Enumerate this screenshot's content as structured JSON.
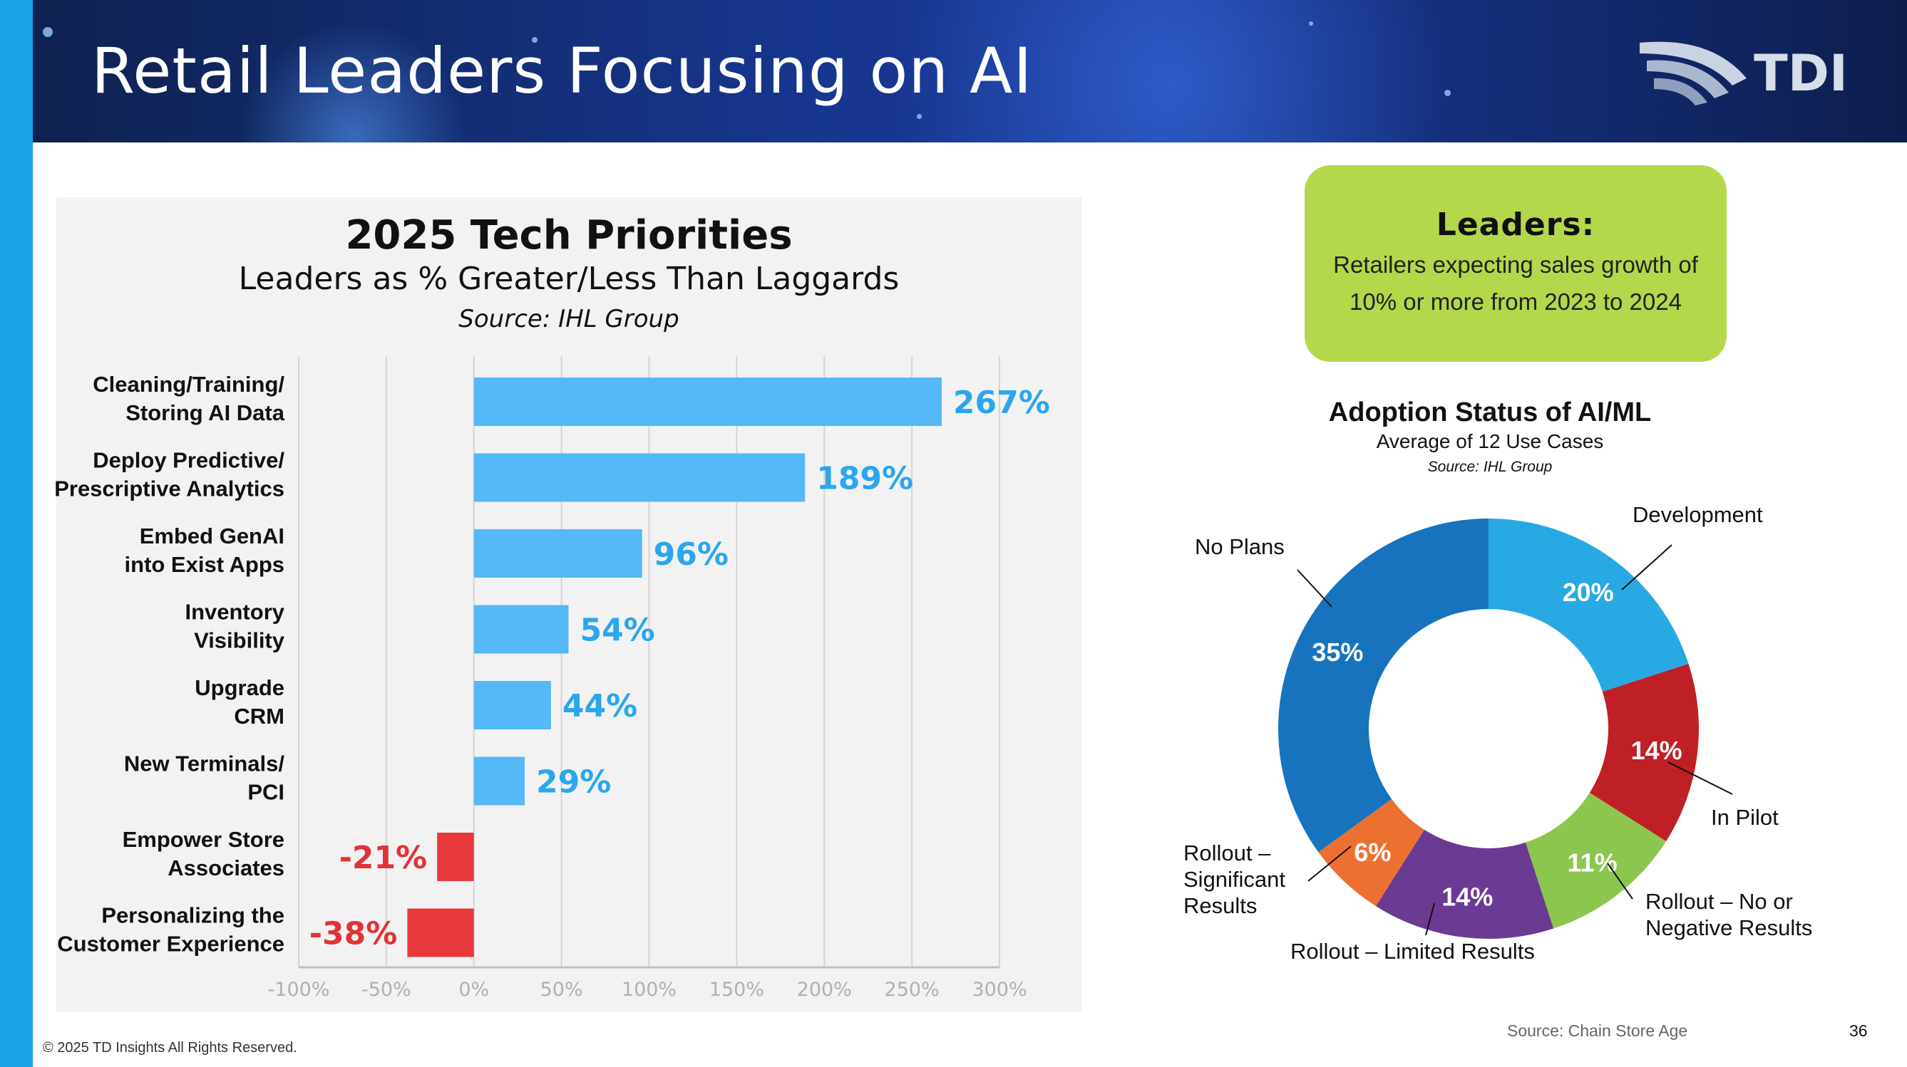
{
  "slide": {
    "title": "Retail Leaders Focusing on AI",
    "logo_text": "TDI",
    "footer_copyright": "© 2025 TD Insights All Rights Reserved.",
    "footer_source": "Source: Chain Store Age",
    "page_number": "36"
  },
  "leaders_box": {
    "title": "Leaders:",
    "text": "Retailers expecting sales growth of 10% or more from 2023 to 2024",
    "color": "#b3d84b"
  },
  "chart_data": [
    {
      "type": "bar",
      "orientation": "horizontal",
      "title": "2025 Tech Priorities",
      "subtitle": "Leaders as % Greater/Less Than Laggards",
      "source": "Source: IHL Group",
      "categories": [
        [
          "Cleaning/Training/",
          "Storing AI Data"
        ],
        [
          "Deploy Predictive/",
          "Prescriptive Analytics"
        ],
        [
          "Embed GenAI",
          "into Exist Apps"
        ],
        [
          "Inventory",
          "Visibility"
        ],
        [
          "Upgrade",
          "CRM"
        ],
        [
          "New Terminals/",
          "PCI"
        ],
        [
          "Empower Store",
          "Associates"
        ],
        [
          "Personalizing the",
          "Customer Experience"
        ]
      ],
      "values": [
        267,
        189,
        96,
        54,
        44,
        29,
        -21,
        -38
      ],
      "value_labels": [
        "267%",
        "189%",
        "96%",
        "54%",
        "44%",
        "29%",
        "-21%",
        "-38%"
      ],
      "xlim": [
        -100,
        300
      ],
      "x_ticks": [
        -100,
        -50,
        0,
        50,
        100,
        150,
        200,
        250,
        300
      ],
      "x_tick_labels": [
        "-100%",
        "-50%",
        "0%",
        "50%",
        "100%",
        "150%",
        "200%",
        "250%",
        "300%"
      ],
      "grid": true,
      "colors": {
        "positive": "#55b8f7",
        "negative": "#e8393c",
        "positive_label": "#2aa6ef",
        "negative_label": "#e03337"
      }
    },
    {
      "type": "pie",
      "style": "donut",
      "title": "Adoption Status of AI/ML",
      "subtitle": "Average of 12 Use Cases",
      "source": "Source: IHL Group",
      "slices": [
        {
          "label": "Development",
          "value": 20,
          "value_label": "20%",
          "color": "#29a9e3"
        },
        {
          "label": "In Pilot",
          "value": 14,
          "value_label": "14%",
          "color": "#bf2026"
        },
        {
          "label": "Rollout – No or Negative Results",
          "value": 11,
          "value_label": "11%",
          "color": "#8dc64e"
        },
        {
          "label": "Rollout – Limited Results",
          "value": 14,
          "value_label": "14%",
          "color": "#6b3a93"
        },
        {
          "label": "Rollout – Significant Results",
          "value": 6,
          "value_label": "6%",
          "color": "#ec7030"
        },
        {
          "label": "No Plans",
          "value": 35,
          "value_label": "35%",
          "color": "#1773bd"
        }
      ]
    }
  ]
}
